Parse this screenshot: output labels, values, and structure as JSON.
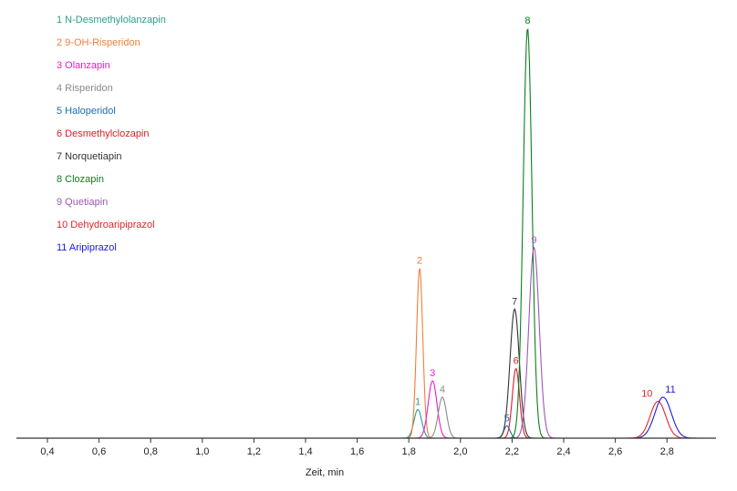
{
  "chart_data": {
    "type": "line",
    "title": "",
    "xlabel": "Zeit, min",
    "ylabel": "",
    "xlim": [
      0.28,
      2.99
    ],
    "ylim": [
      0,
      100
    ],
    "grid": false,
    "legend_position": "top-left",
    "x_ticks": [
      "0,4",
      "0,6",
      "0,8",
      "1,0",
      "1,2",
      "1,4",
      "1,6",
      "1,8",
      "2,0",
      "2,2",
      "2,4",
      "2,6",
      "2,8"
    ],
    "x_tick_values": [
      0.4,
      0.6,
      0.8,
      1.0,
      1.2,
      1.4,
      1.6,
      1.8,
      2.0,
      2.2,
      2.4,
      2.6,
      2.8
    ],
    "series": [
      {
        "peak_label": "1",
        "name": "N-Desmethylolanzapin",
        "color": "#2a9d8f",
        "rt": 1.835,
        "height": 7.0,
        "sigma": 0.015
      },
      {
        "peak_label": "2",
        "name": "9-OH-Risperidon",
        "color": "#ee7f3a",
        "rt": 1.842,
        "height": 41.5,
        "sigma": 0.012
      },
      {
        "peak_label": "3",
        "name": "Olanzapin",
        "color": "#e81ec8",
        "rt": 1.892,
        "height": 14.0,
        "sigma": 0.017
      },
      {
        "peak_label": "4",
        "name": "Risperidon",
        "color": "#8a8a8a",
        "rt": 1.93,
        "height": 10.0,
        "sigma": 0.016
      },
      {
        "peak_label": "5",
        "name": "Haloperidol",
        "color": "#1a6eb5",
        "rt": 2.18,
        "height": 3.0,
        "sigma": 0.012
      },
      {
        "peak_label": "6",
        "name": "Desmethylclozapin",
        "color": "#d91e26",
        "rt": 2.215,
        "height": 17.0,
        "sigma": 0.014
      },
      {
        "peak_label": "7",
        "name": "Norquetiapin",
        "color": "#333333",
        "rt": 2.21,
        "height": 31.5,
        "sigma": 0.018
      },
      {
        "peak_label": "8",
        "name": "Clozapin",
        "color": "#0a7f1e",
        "rt": 2.26,
        "height": 100.0,
        "sigma": 0.017
      },
      {
        "peak_label": "9",
        "name": "Quetiapin",
        "color": "#9b59b6",
        "rt": 2.285,
        "height": 46.5,
        "sigma": 0.02
      },
      {
        "peak_label": "10",
        "name": "Dehydroaripiprazol",
        "color": "#e0262a",
        "rt": 2.765,
        "height": 9.0,
        "sigma": 0.03
      },
      {
        "peak_label": "11",
        "name": "Aripiprazol",
        "color": "#1c1cd6",
        "rt": 2.785,
        "height": 10.0,
        "sigma": 0.032
      }
    ]
  },
  "legend": [
    {
      "text": "1 N-Desmethylolanzapin",
      "color": "#2a9d8f"
    },
    {
      "text": "2 9-OH-Risperidon",
      "color": "#ee7f3a"
    },
    {
      "text": "3 Olanzapin",
      "color": "#e81ec8"
    },
    {
      "text": "4 Risperidon",
      "color": "#8a8a8a"
    },
    {
      "text": "5 Haloperidol",
      "color": "#1a6eb5"
    },
    {
      "text": "6 Desmethylclozapin",
      "color": "#d91e26"
    },
    {
      "text": "7 Norquetiapin",
      "color": "#333333"
    },
    {
      "text": "8 Clozapin",
      "color": "#0a7f1e"
    },
    {
      "text": "9 Quetiapin",
      "color": "#9b59b6"
    },
    {
      "text": "10 Dehydroaripiprazol",
      "color": "#e0262a"
    },
    {
      "text": "11 Aripiprazol",
      "color": "#1c1cd6"
    }
  ]
}
